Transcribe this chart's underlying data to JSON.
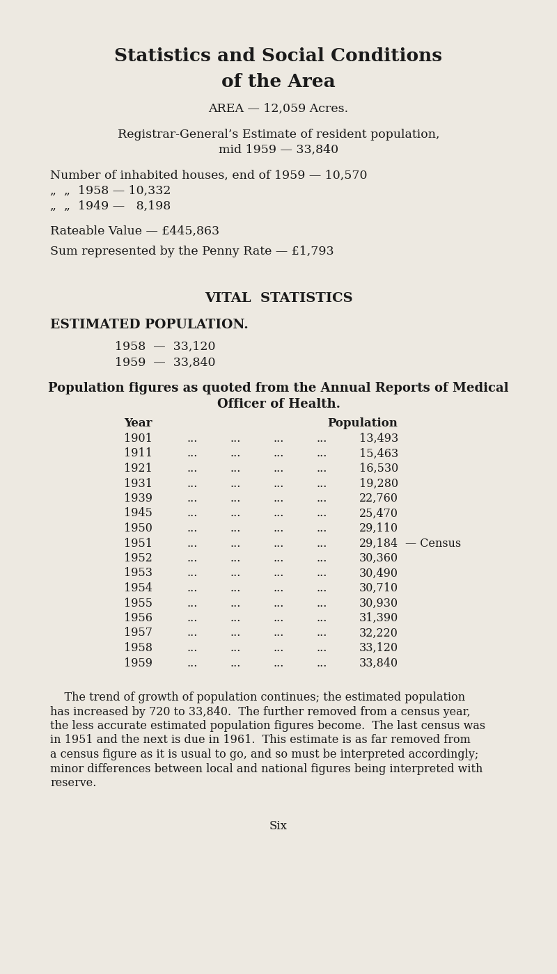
{
  "bg_color": "#ede9e1",
  "text_color": "#1a1a1a",
  "title_line1": "Statistics and Social Conditions",
  "title_line2": "of the Area",
  "area_line": "AREA — 12,059 Acres.",
  "registrar_line1": "Registrar-General’s Estimate of resident population,",
  "registrar_line2": "mid 1959 — 33,840",
  "houses_line1": "Number of inhabited houses, end of 1959 — 10,570",
  "houses_line2": "„  „  1958 — 10,332",
  "houses_line3": "„  „  1949 —   8,198",
  "rateable_line": "Rateable Value — £445,863",
  "penny_line": "Sum represented by the Penny Rate — £1,793",
  "vital_header": "VITAL  STATISTICS",
  "estimated_header": "ESTIMATED POPULATION.",
  "est_1958": "1958  —  33,120",
  "est_1959": "1959  —  33,840",
  "pop_header1": "Population figures as quoted from the Annual Reports of Medical",
  "pop_header2": "Officer of Health.",
  "col_year": "Year",
  "col_pop": "Population",
  "table_data": [
    [
      "1901",
      "...",
      "...",
      "...",
      "...",
      "13,493",
      ""
    ],
    [
      "1911",
      "...",
      "...",
      "...",
      "...",
      "15,463",
      ""
    ],
    [
      "1921",
      "...",
      "...",
      "...",
      "...",
      "16,530",
      ""
    ],
    [
      "1931",
      "...",
      "...",
      "...",
      "...",
      "19,280",
      ""
    ],
    [
      "1939",
      "...",
      "...",
      "...",
      "...",
      "22,760",
      ""
    ],
    [
      "1945",
      "...",
      "...",
      "...",
      "...",
      "25,470",
      ""
    ],
    [
      "1950",
      "...",
      "...",
      "...",
      "...",
      "29,110",
      ""
    ],
    [
      "1951",
      "...",
      "...",
      "...",
      "...",
      "29,184",
      "— Census"
    ],
    [
      "1952",
      "...",
      "...",
      "...",
      "...",
      "30,360",
      ""
    ],
    [
      "1953",
      "...",
      "...",
      "...",
      "...",
      "30,490",
      ""
    ],
    [
      "1954",
      "...",
      "...",
      "...",
      "...",
      "30,710",
      ""
    ],
    [
      "1955",
      "...",
      "...",
      "...",
      "...",
      "30,930",
      ""
    ],
    [
      "1956",
      "...",
      "...",
      "...",
      "...",
      "31,390",
      ""
    ],
    [
      "1957",
      "...",
      "...",
      "...",
      "...",
      "32,220",
      ""
    ],
    [
      "1958",
      "...",
      "...",
      "...",
      "...",
      "33,120",
      ""
    ],
    [
      "1959",
      "...",
      "...",
      "...",
      "...",
      "33,840",
      ""
    ]
  ],
  "paragraph_lines": [
    "    The trend of growth of population continues; the estimated population",
    "has increased by 720 to 33,840.  The further removed from a census year,",
    "the less accurate estimated population figures become.  The last census was",
    "in 1951 and the next is due in 1961.  This estimate is as far removed from",
    "a census figure as it is usual to go, and so must be interpreted accordingly;",
    "minor differences between local and national figures being interpreted with",
    "reserve."
  ],
  "page_num": "Six",
  "fig_width": 8.0,
  "fig_height": 14.0,
  "dpi": 100
}
